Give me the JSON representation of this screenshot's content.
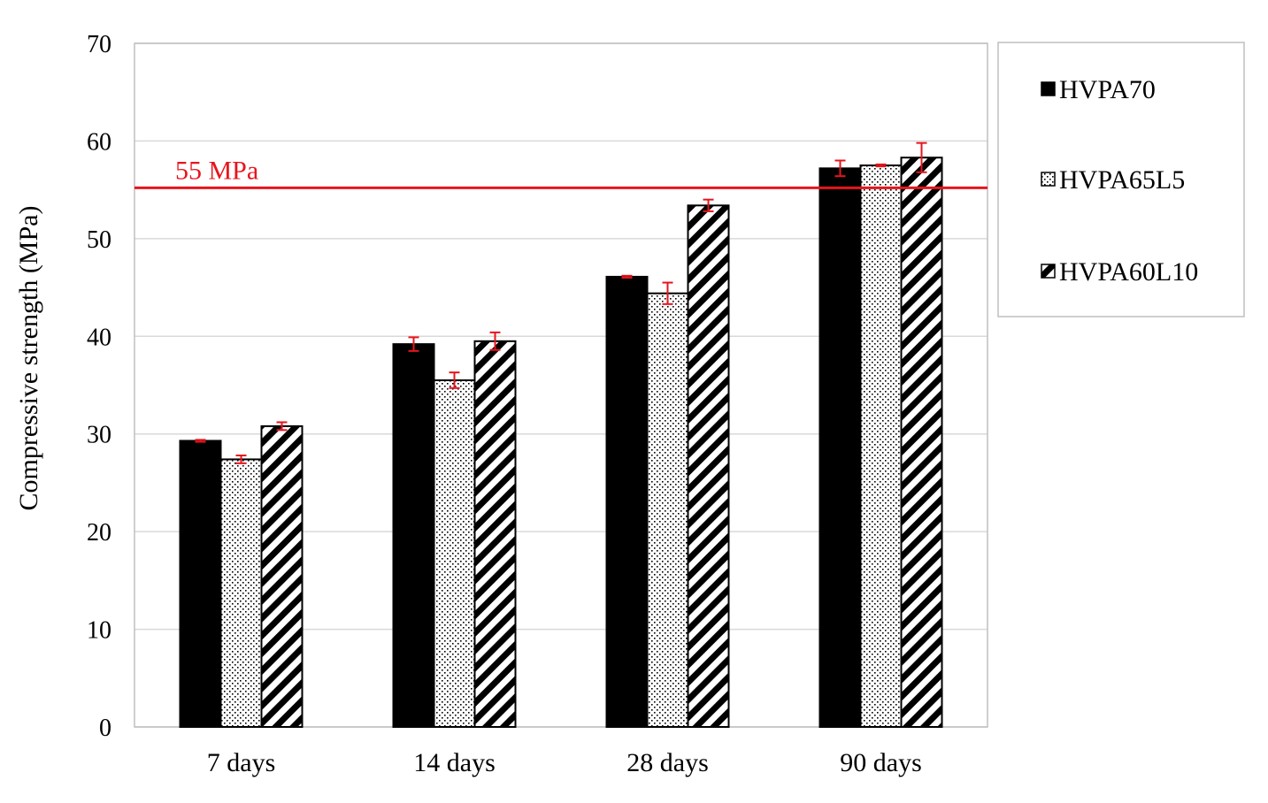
{
  "chart_data": {
    "type": "bar",
    "title": "",
    "xlabel": "",
    "ylabel": "Compressive strength (MPa)",
    "ylim": [
      0,
      70
    ],
    "yticks": [
      0,
      10,
      20,
      30,
      40,
      50,
      60,
      70
    ],
    "grid": true,
    "legend_position": "right",
    "categories": [
      "7 days",
      "14 days",
      "28 days",
      "90 days"
    ],
    "series": [
      {
        "name": "HVPA70",
        "pattern": "solid",
        "values": [
          29.3,
          39.2,
          46.1,
          57.2
        ],
        "errors": [
          0.1,
          0.7,
          0.1,
          0.8
        ]
      },
      {
        "name": "HVPA65L5",
        "pattern": "dots",
        "values": [
          27.4,
          35.5,
          44.4,
          57.5
        ],
        "errors": [
          0.4,
          0.8,
          1.1,
          0.1
        ]
      },
      {
        "name": "HVPA60L10",
        "pattern": "diagonal-stripes",
        "values": [
          30.8,
          39.5,
          53.4,
          58.3
        ],
        "errors": [
          0.4,
          0.9,
          0.6,
          1.5
        ]
      }
    ],
    "reference_line": {
      "value": 55.2,
      "label": "55 MPa",
      "color": "#e8141c"
    },
    "colors": {
      "bar_fill": "#000000",
      "error_bar": "#e8141c",
      "grid": "#d9d9d9",
      "axis": "#bfbfbf"
    }
  }
}
